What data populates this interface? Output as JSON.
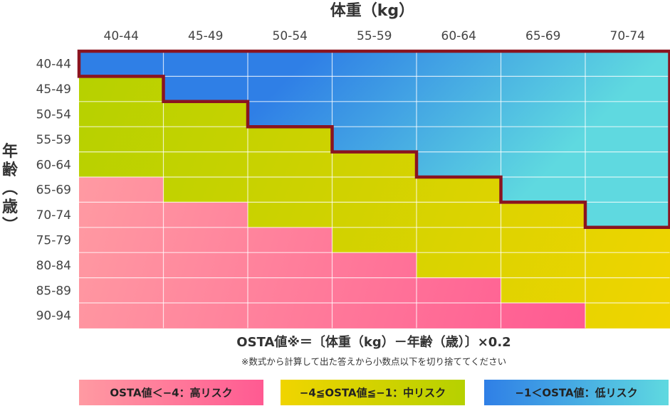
{
  "chart_data": {
    "type": "heatmap",
    "xlabel": "体重（kg）",
    "ylabel": "年齢（歳）",
    "x_categories": [
      "40-44",
      "45-49",
      "50-54",
      "55-59",
      "60-64",
      "65-69",
      "70-74"
    ],
    "y_categories": [
      "40-44",
      "45-49",
      "50-54",
      "55-59",
      "60-64",
      "65-69",
      "70-74",
      "75-79",
      "80-84",
      "85-89",
      "90-94"
    ],
    "risk_matrix": [
      [
        "low",
        "low",
        "low",
        "low",
        "low",
        "low",
        "low"
      ],
      [
        "mid",
        "low",
        "low",
        "low",
        "low",
        "low",
        "low"
      ],
      [
        "mid",
        "mid",
        "low",
        "low",
        "low",
        "low",
        "low"
      ],
      [
        "mid",
        "mid",
        "mid",
        "low",
        "low",
        "low",
        "low"
      ],
      [
        "mid",
        "mid",
        "mid",
        "mid",
        "low",
        "low",
        "low"
      ],
      [
        "high",
        "mid",
        "mid",
        "mid",
        "mid",
        "low",
        "low"
      ],
      [
        "high",
        "high",
        "mid",
        "mid",
        "mid",
        "mid",
        "low"
      ],
      [
        "high",
        "high",
        "high",
        "mid",
        "mid",
        "mid",
        "mid"
      ],
      [
        "high",
        "high",
        "high",
        "high",
        "mid",
        "mid",
        "mid"
      ],
      [
        "high",
        "high",
        "high",
        "high",
        "high",
        "mid",
        "mid"
      ],
      [
        "high",
        "high",
        "high",
        "high",
        "high",
        "high",
        "mid"
      ]
    ],
    "formula": "OSTA値※＝〔体重（kg）－年齢（歳）〕×0.2",
    "note": "※数式から計算して出た答えから小数点以下を切り捨ててください",
    "legend": [
      {
        "key": "high",
        "label": "OSTA値＜−4：高リスク"
      },
      {
        "key": "mid",
        "label": "−4≦OSTA値≦−1：中リスク"
      },
      {
        "key": "low",
        "label": "−1＜OSTA値：低リスク"
      }
    ],
    "colors": {
      "high_light": "#ff9aa2",
      "high_dark": "#ff5a92",
      "mid_light": "#b6d100",
      "mid_dark": "#f0d400",
      "low_light": "#5fd9e0",
      "low_dark": "#2f7fe6",
      "boundary": "#8a1420"
    }
  }
}
